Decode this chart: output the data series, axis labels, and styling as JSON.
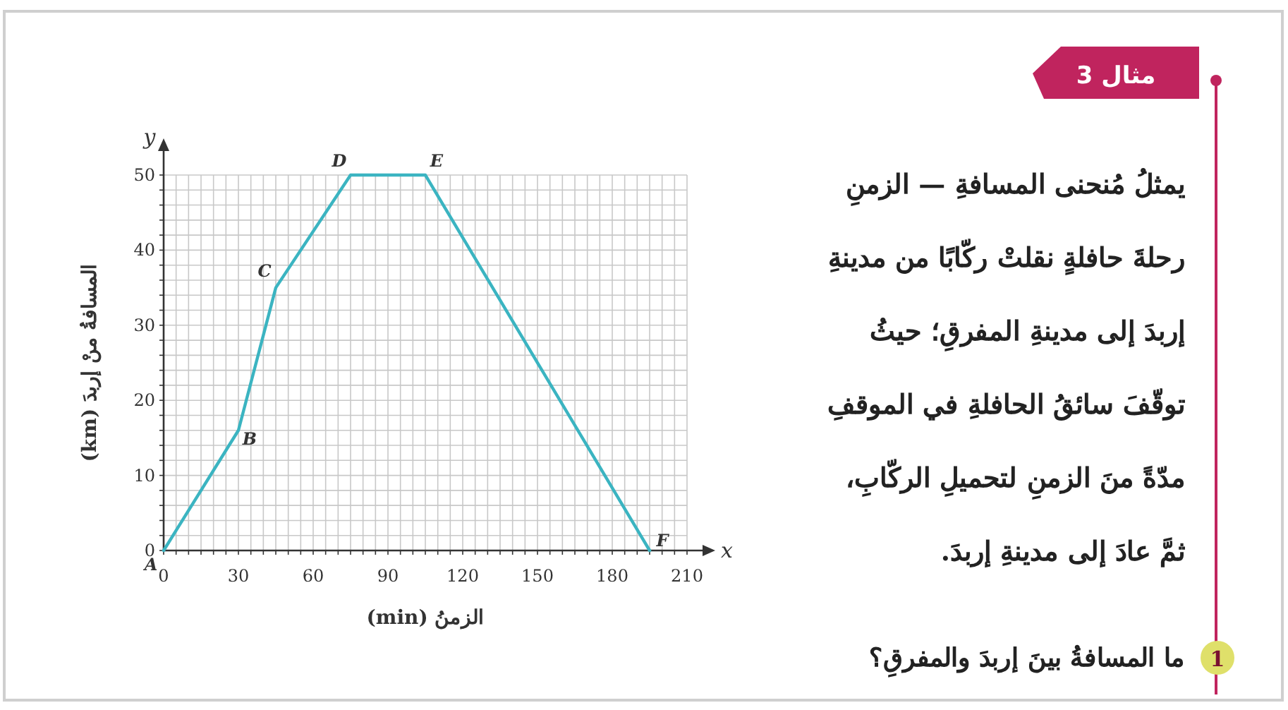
{
  "chart_data": {
    "type": "line",
    "xlabel": "الزمنُ (min)",
    "ylabel": "المسافةُ منْ إربدَ (km)",
    "series": [
      {
        "color": "#3bb4c1",
        "x": [
          0,
          30,
          45,
          75,
          105,
          195
        ],
        "values": [
          0,
          16,
          35,
          50,
          50,
          0
        ]
      }
    ],
    "xlim": [
      0,
      210
    ],
    "ylim": [
      0,
      50
    ],
    "xticks": [
      0,
      {
        "value": 5,
        "label": null
      },
      {
        "value": 10,
        "label": null
      },
      {
        "value": 15,
        "label": null
      },
      {
        "value": 20,
        "label": null
      },
      {
        "value": 25,
        "label": null
      },
      30,
      {
        "value": 35,
        "label": null
      },
      {
        "value": 40,
        "label": null
      },
      {
        "value": 45,
        "label": null
      },
      {
        "value": 50,
        "label": null
      },
      {
        "value": 55,
        "label": null
      },
      60,
      {
        "value": 65,
        "label": null
      },
      {
        "value": 70,
        "label": null
      },
      {
        "value": 75,
        "label": null
      },
      {
        "value": 80,
        "label": null
      },
      {
        "value": 85,
        "label": null
      },
      90,
      {
        "value": 95,
        "label": null
      },
      {
        "value": 100,
        "label": null
      },
      {
        "value": 105,
        "label": null
      },
      {
        "value": 110,
        "label": null
      },
      {
        "value": 115,
        "label": null
      },
      120,
      {
        "value": 125,
        "label": null
      },
      {
        "value": 130,
        "label": null
      },
      {
        "value": 135,
        "label": null
      },
      {
        "value": 140,
        "label": null
      },
      {
        "value": 145,
        "label": null
      },
      150,
      {
        "value": 155,
        "label": null
      },
      {
        "value": 160,
        "label": null
      },
      {
        "value": 165,
        "label": null
      },
      {
        "value": 170,
        "label": null
      },
      {
        "value": 175,
        "label": null
      },
      180,
      {
        "value": 185,
        "label": null
      },
      {
        "value": 190,
        "label": null
      },
      {
        "value": 195,
        "label": null
      },
      {
        "value": 200,
        "label": null
      },
      {
        "value": 205,
        "label": null
      },
      210
    ],
    "yticks": [
      0,
      {
        "value": 2,
        "label": null
      },
      {
        "value": 4,
        "label": null
      },
      {
        "value": 6,
        "label": null
      },
      {
        "value": 8,
        "label": null
      },
      10,
      {
        "value": 12,
        "label": null
      },
      {
        "value": 14,
        "label": null
      },
      {
        "value": 16,
        "label": null
      },
      {
        "value": 18,
        "label": null
      },
      20,
      {
        "value": 22,
        "label": null
      },
      {
        "value": 24,
        "label": null
      },
      {
        "value": 26,
        "label": null
      },
      {
        "value": 28,
        "label": null
      },
      30,
      {
        "value": 32,
        "label": null
      },
      {
        "value": 34,
        "label": null
      },
      {
        "value": 36,
        "label": null
      },
      {
        "value": 38,
        "label": null
      },
      40,
      {
        "value": 42,
        "label": null
      },
      {
        "value": 44,
        "label": null
      },
      {
        "value": 46,
        "label": null
      },
      {
        "value": 48,
        "label": null
      },
      50
    ],
    "grid": true,
    "marker": "none",
    "line_style": "solid",
    "annotations": [
      {
        "text": "A",
        "x": 0,
        "y": 0
      },
      {
        "text": "B",
        "x": 30,
        "y": 16
      },
      {
        "text": "C",
        "x": 45,
        "y": 35
      },
      {
        "text": "D",
        "x": 75,
        "y": 50
      },
      {
        "text": "E",
        "x": 105,
        "y": 50
      },
      {
        "text": "F",
        "x": 195,
        "y": 0
      },
      "x",
      "y",
      "مثال 3",
      "يمثلُ مُنحنى المسافةِ — الزمنِ",
      "رحلةَ حافلةٍ نقلتْ ركّابًا من مدينةِ",
      "إربدَ إلى مدينةِ المفرقِ؛ حيثُ",
      "توقّفَ سائقُ الحافلةِ في الموقفِ",
      "مدّةً منَ الزمنِ لتحميلِ الركّابِ،",
      "ثمَّ عادَ إلى مدينةِ إربدَ.",
      "1",
      "ما المسافةُ بينَ إربدَ والمفرقِ؟"
    ]
  }
}
